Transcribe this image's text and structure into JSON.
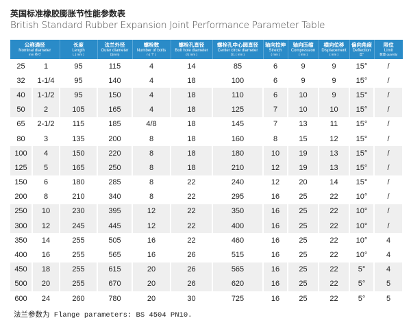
{
  "title": "英国标准橡胶膨胀节性能参数表",
  "subtitle": "British Standard Rubber Expansion Joint Performance Parameter Table",
  "header_color": "#2a8bc8",
  "headers": [
    {
      "cn": "公称通径",
      "en": "Nominal diameter",
      "un": "mm        英寸"
    },
    {
      "cn": "长度",
      "en": "Length",
      "un": "L ( mm )"
    },
    {
      "cn": "法兰外径",
      "en": "Outer diameter",
      "un": "D(mm)"
    },
    {
      "cn": "螺栓数",
      "en": "Number of bolts",
      "un": "n ( 个 )"
    },
    {
      "cn": "螺栓孔直径",
      "en": "Bolt hole diameter",
      "un": "d ( mm )"
    },
    {
      "cn": "螺栓孔中心圆直径",
      "en": "Center circle diameter",
      "un": "D1 ( mm )"
    },
    {
      "cn": "轴向拉伸",
      "en": "Stretch",
      "un": "( mm )"
    },
    {
      "cn": "轴向压缩",
      "en": "Compression",
      "un": "( mm )"
    },
    {
      "cn": "横向位移",
      "en": "Displacement",
      "un": "( mm )"
    },
    {
      "cn": "偏向角度",
      "en": "Deflection",
      "un": "度°"
    },
    {
      "cn": "限位",
      "en": "Limit",
      "un": "数量 quantity"
    }
  ],
  "rows": [
    [
      "25",
      "1",
      "95",
      "115",
      "4",
      "14",
      "85",
      "6",
      "9",
      "9",
      "15°",
      "/"
    ],
    [
      "32",
      "1-1/4",
      "95",
      "140",
      "4",
      "18",
      "100",
      "6",
      "9",
      "9",
      "15°",
      "/"
    ],
    [
      "40",
      "1-1/2",
      "95",
      "150",
      "4",
      "18",
      "110",
      "6",
      "10",
      "9",
      "15°",
      "/"
    ],
    [
      "50",
      "2",
      "105",
      "165",
      "4",
      "18",
      "125",
      "7",
      "10",
      "10",
      "15°",
      "/"
    ],
    [
      "65",
      "2-1/2",
      "115",
      "185",
      "4/8",
      "18",
      "145",
      "7",
      "13",
      "11",
      "15°",
      "/"
    ],
    [
      "80",
      "3",
      "135",
      "200",
      "8",
      "18",
      "160",
      "8",
      "15",
      "12",
      "15°",
      "/"
    ],
    [
      "100",
      "4",
      "150",
      "220",
      "8",
      "18",
      "180",
      "10",
      "19",
      "13",
      "15°",
      "/"
    ],
    [
      "125",
      "5",
      "165",
      "250",
      "8",
      "18",
      "210",
      "12",
      "19",
      "13",
      "15°",
      "/"
    ],
    [
      "150",
      "6",
      "180",
      "285",
      "8",
      "22",
      "240",
      "12",
      "20",
      "14",
      "15°",
      "/"
    ],
    [
      "200",
      "8",
      "210",
      "340",
      "8",
      "22",
      "295",
      "16",
      "25",
      "22",
      "10°",
      "/"
    ],
    [
      "250",
      "10",
      "230",
      "395",
      "12",
      "22",
      "350",
      "16",
      "25",
      "22",
      "10°",
      "/"
    ],
    [
      "300",
      "12",
      "245",
      "445",
      "12",
      "22",
      "400",
      "16",
      "25",
      "22",
      "10°",
      "/"
    ],
    [
      "350",
      "14",
      "255",
      "505",
      "16",
      "22",
      "460",
      "16",
      "25",
      "22",
      "10°",
      "4"
    ],
    [
      "400",
      "16",
      "255",
      "565",
      "16",
      "26",
      "515",
      "16",
      "25",
      "22",
      "10°",
      "4"
    ],
    [
      "450",
      "18",
      "255",
      "615",
      "20",
      "26",
      "565",
      "16",
      "25",
      "22",
      "5°",
      "4"
    ],
    [
      "500",
      "20",
      "255",
      "670",
      "20",
      "26",
      "620",
      "16",
      "25",
      "22",
      "5°",
      "5"
    ],
    [
      "600",
      "24",
      "260",
      "780",
      "20",
      "30",
      "725",
      "16",
      "25",
      "22",
      "5°",
      "5"
    ]
  ],
  "note": "法兰参数为 Flange parameters: BS 4504 PN10."
}
